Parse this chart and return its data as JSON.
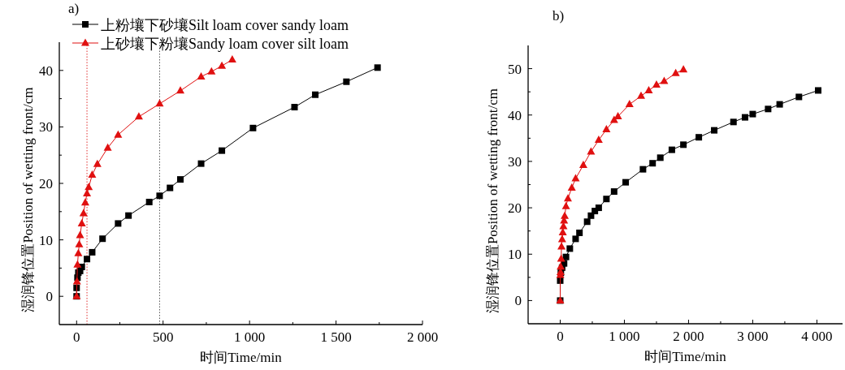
{
  "chart_data": [
    {
      "type": "line",
      "title": "a)",
      "xlabel": "时间Time/min",
      "ylabel": "湿润锋位置Position of wetting front/cm",
      "legend": "top left",
      "grid": false,
      "xlim": [
        -100,
        2000
      ],
      "xticks": [
        {
          "value": 0,
          "label": "0"
        },
        {
          "value": 250,
          "label": null
        },
        500,
        {
          "value": 750,
          "label": null
        },
        {
          "value": 1000,
          "label": "1 000"
        },
        {
          "value": 1250,
          "label": null
        },
        {
          "value": 1500,
          "label": "1 500"
        },
        {
          "value": 1750,
          "label": null
        },
        {
          "value": 2000,
          "label": "2 000"
        }
      ],
      "ylim": [
        -5,
        45
      ],
      "yticks": [
        0,
        {
          "value": 5,
          "label": null
        },
        10,
        {
          "value": 15,
          "label": null
        },
        20,
        {
          "value": 25,
          "label": null
        },
        30,
        {
          "value": 35,
          "label": null
        },
        40
      ],
      "ref_lines": [
        {
          "axis": "x",
          "value": 60,
          "color": "#e03030",
          "line_style": "dotted"
        },
        {
          "axis": "x",
          "value": 480,
          "color": "#555555",
          "line_style": "dotted"
        }
      ],
      "series": [
        {
          "name": "上粉壤下砂壤Silt loam cover sandy loam",
          "color": "#000000",
          "marker": "square",
          "x": [
            0,
            0,
            5,
            10,
            20,
            30,
            60,
            90,
            150,
            240,
            300,
            420,
            480,
            540,
            600,
            720,
            840,
            1020,
            1260,
            1380,
            1560,
            1740
          ],
          "values": [
            0,
            1.5,
            3.3,
            4.2,
            4.5,
            5.2,
            6.6,
            7.8,
            10.2,
            12.9,
            14.3,
            16.7,
            17.8,
            19.2,
            20.7,
            23.5,
            25.8,
            29.8,
            33.5,
            35.7,
            38,
            40.5
          ]
        },
        {
          "name": "上砂壤下粉壤Sandy loam cover silt loam",
          "color": "#e01010",
          "marker": "triangle",
          "x": [
            0,
            2,
            5,
            10,
            15,
            20,
            30,
            40,
            50,
            60,
            70,
            90,
            120,
            180,
            240,
            360,
            480,
            600,
            720,
            780,
            840,
            900
          ],
          "values": [
            0,
            2.6,
            5.6,
            7.6,
            9.2,
            10.8,
            12.9,
            14.7,
            16.6,
            18.2,
            19.3,
            21.5,
            23.4,
            26.3,
            28.6,
            31.8,
            34.1,
            36.4,
            38.9,
            39.8,
            40.8,
            41.9
          ]
        }
      ]
    },
    {
      "type": "line",
      "title": "b)",
      "xlabel": "时间Time/min",
      "ylabel": "湿润锋位置Position of wetting front/cm",
      "grid": false,
      "xlim": [
        -500,
        4400
      ],
      "xticks": [
        0,
        {
          "value": 500,
          "label": null
        },
        {
          "value": 1000,
          "label": "1 000"
        },
        {
          "value": 1500,
          "label": null
        },
        {
          "value": 2000,
          "label": "2 000"
        },
        {
          "value": 2500,
          "label": null
        },
        {
          "value": 3000,
          "label": "3 000"
        },
        {
          "value": 3500,
          "label": null
        },
        {
          "value": 4000,
          "label": "4 000"
        }
      ],
      "ylim": [
        -5,
        55
      ],
      "yticks": [
        0,
        {
          "value": 5,
          "label": null
        },
        10,
        {
          "value": 15,
          "label": null
        },
        20,
        {
          "value": 25,
          "label": null
        },
        30,
        {
          "value": 35,
          "label": null
        },
        40,
        {
          "value": 45,
          "label": null
        },
        50
      ],
      "series": [
        {
          "color": "#000000",
          "marker": "square",
          "x": [
            0,
            0,
            10,
            30,
            60,
            90,
            150,
            240,
            300,
            420,
            480,
            540,
            600,
            720,
            840,
            1020,
            1290,
            1440,
            1560,
            1740,
            1920,
            2160,
            2400,
            2700,
            2880,
            3000,
            3240,
            3420,
            3720,
            4020
          ],
          "values": [
            0,
            4.3,
            6,
            7.1,
            8,
            9.4,
            11.2,
            13.3,
            14.6,
            17,
            18.3,
            19.3,
            20,
            21.9,
            23.5,
            25.5,
            28.3,
            29.6,
            30.8,
            32.5,
            33.6,
            35.2,
            36.7,
            38.5,
            39.5,
            40.2,
            41.3,
            42.3,
            43.9,
            45.3
          ]
        },
        {
          "color": "#e01010",
          "marker": "triangle",
          "x": [
            0,
            2,
            5,
            8,
            15,
            20,
            30,
            40,
            50,
            60,
            70,
            90,
            120,
            180,
            240,
            360,
            480,
            600,
            720,
            840,
            900,
            1080,
            1260,
            1380,
            1500,
            1620,
            1800,
            1920
          ],
          "values": [
            0,
            5.5,
            6.1,
            7.3,
            9,
            11.6,
            13.2,
            14.7,
            16,
            17.2,
            18.2,
            20.3,
            22,
            24.3,
            26.3,
            29.2,
            32.1,
            34.6,
            36.9,
            38.9,
            39.7,
            42.3,
            44.1,
            45.3,
            46.5,
            47.3,
            49,
            49.8
          ]
        }
      ]
    }
  ]
}
